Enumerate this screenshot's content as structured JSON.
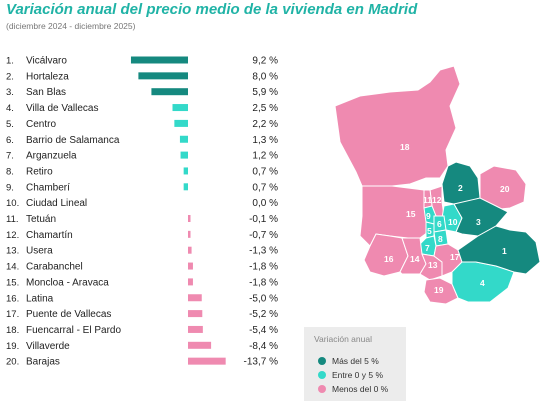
{
  "header": {
    "title": "Variación anual del precio medio de la vivienda en Madrid",
    "subtitle": "(diciembre 2024 - diciembre 2025)"
  },
  "colors": {
    "positive_high": "#15897f",
    "positive_low": "#33d9c9",
    "negative": "#ef8ab0",
    "title": "#20b3a6"
  },
  "chart_data": {
    "type": "bar",
    "orientation": "horizontal",
    "categories": [
      "Vicálvaro",
      "Hortaleza",
      "San Blas",
      "Villa de Vallecas",
      "Centro",
      "Barrio de Salamanca",
      "Arganzuela",
      "Retiro",
      "Chamberí",
      "Ciudad Lineal",
      "Tetuán",
      "Chamartín",
      "Usera",
      "Carabanchel",
      "Moncloa - Aravaca",
      "Latina",
      "Puente de Vallecas",
      "Fuencarral - El Pardo",
      "Villaverde",
      "Barajas"
    ],
    "ranks": [
      "1.",
      "2.",
      "3.",
      "4.",
      "5.",
      "6.",
      "7.",
      "8.",
      "9.",
      "10.",
      "11.",
      "12.",
      "13.",
      "14.",
      "15.",
      "16.",
      "17.",
      "18.",
      "19.",
      "20."
    ],
    "values": [
      9.2,
      8.0,
      5.9,
      2.5,
      2.2,
      1.3,
      1.2,
      0.7,
      0.7,
      0.0,
      -0.1,
      -0.7,
      -1.3,
      -1.8,
      -1.8,
      -5.0,
      -5.2,
      -5.4,
      -8.4,
      -13.7
    ],
    "value_labels": [
      "9,2 %",
      "8,0 %",
      "5,9 %",
      "2,5 %",
      "2,2 %",
      "1,3 %",
      "1,2 %",
      "0,7 %",
      "0,7 %",
      "0,0 %",
      "-0,1 %",
      "-0,7 %",
      "-1,3 %",
      "-1,8 %",
      "-1,8 %",
      "-5,0 %",
      "-5,2 %",
      "-5,4 %",
      "-8,4 %",
      "-13,7 %"
    ],
    "xlabel": "",
    "ylabel": "",
    "grid": false
  },
  "map": {
    "district_numbers": [
      "1",
      "2",
      "3",
      "4",
      "5",
      "6",
      "7",
      "8",
      "9",
      "10",
      "11",
      "12",
      "13",
      "14",
      "15",
      "16",
      "17",
      "18",
      "19",
      "20"
    ]
  },
  "legend": {
    "title": "Variación anual",
    "items": [
      {
        "label": "Más del 5 %",
        "color": "#15897f"
      },
      {
        "label": "Entre 0 y 5 %",
        "color": "#33d9c9"
      },
      {
        "label": "Menos del 0 %",
        "color": "#ef8ab0"
      }
    ]
  }
}
